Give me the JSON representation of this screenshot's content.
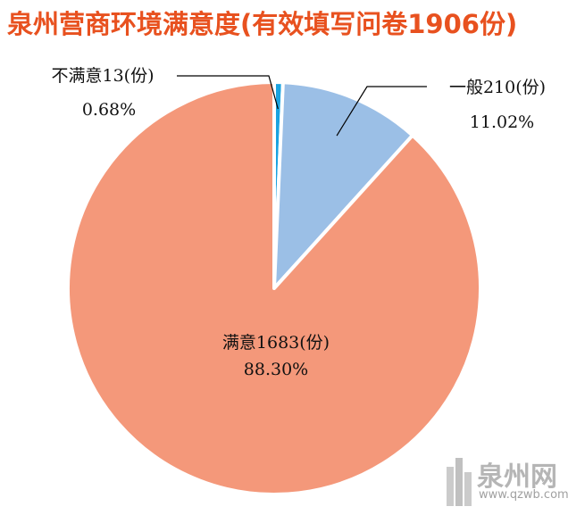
{
  "colors": {
    "title": "#e8511f",
    "satisfied": "#f4987a",
    "general": "#9bbfe6",
    "unsatisfied": "#1aa3e0",
    "separator": "#ffffff",
    "leader": "#000000"
  },
  "chart_data": {
    "type": "pie",
    "title": "泉州营商环境满意度(有效填写问卷1906份)",
    "total": 1906,
    "series": [
      {
        "name": "不满意",
        "label": "不满意13(份)",
        "value": 13,
        "percent_label": "0.68%",
        "percent": 0.68
      },
      {
        "name": "一般",
        "label": "一般210(份)",
        "value": 210,
        "percent_label": "11.02%",
        "percent": 11.02
      },
      {
        "name": "满意",
        "label": "满意1683(份)",
        "value": 1683,
        "percent_label": "88.30%",
        "percent": 88.3
      }
    ]
  },
  "watermark": {
    "text": "泉州网",
    "url": "www.qzwb.com"
  }
}
